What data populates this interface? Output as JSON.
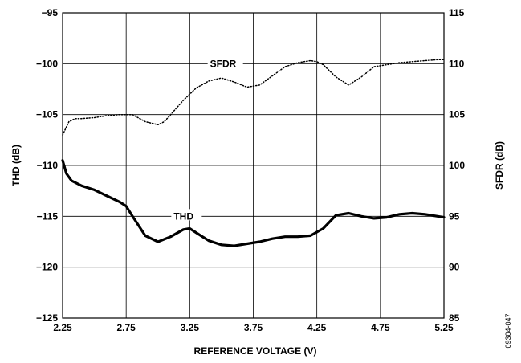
{
  "chart_data": {
    "type": "line",
    "xlabel": "REFERENCE VOLTAGE (V)",
    "ylabel_left": "THD (dB)",
    "ylabel_right": "SFDR (dB)",
    "x_ticks": [
      "2.25",
      "2.75",
      "3.25",
      "3.75",
      "4.25",
      "4.75",
      "5.25"
    ],
    "y_left_ticks": [
      "−95",
      "−100",
      "−105",
      "−110",
      "−115",
      "−120",
      "−125"
    ],
    "y_right_ticks": [
      "115",
      "110",
      "105",
      "100",
      "95",
      "90",
      "85"
    ],
    "xlim": [
      2.25,
      5.25
    ],
    "ylim_left": [
      -125,
      -95
    ],
    "ylim_right": [
      85,
      115
    ],
    "grid": true,
    "figure_id": "09304-047",
    "series": [
      {
        "name": "SFDR",
        "axis": "right",
        "style": "dotted",
        "x": [
          2.25,
          2.3,
          2.35,
          2.4,
          2.5,
          2.6,
          2.7,
          2.8,
          2.9,
          3.0,
          3.05,
          3.1,
          3.2,
          3.3,
          3.4,
          3.5,
          3.6,
          3.7,
          3.8,
          3.9,
          4.0,
          4.1,
          4.2,
          4.25,
          4.3,
          4.4,
          4.5,
          4.6,
          4.7,
          4.8,
          4.9,
          5.0,
          5.1,
          5.2,
          5.25
        ],
        "values": [
          103.0,
          104.3,
          104.6,
          104.6,
          104.7,
          104.9,
          105.0,
          105.0,
          104.3,
          104.0,
          104.3,
          105.0,
          106.4,
          107.6,
          108.3,
          108.6,
          108.2,
          107.7,
          107.9,
          108.8,
          109.7,
          110.1,
          110.3,
          110.2,
          109.9,
          108.7,
          107.9,
          108.7,
          109.7,
          109.9,
          110.1,
          110.2,
          110.3,
          110.4,
          110.4
        ]
      },
      {
        "name": "THD",
        "axis": "left",
        "style": "solid-thick",
        "x": [
          2.25,
          2.28,
          2.32,
          2.4,
          2.5,
          2.6,
          2.7,
          2.75,
          2.8,
          2.9,
          3.0,
          3.1,
          3.2,
          3.25,
          3.3,
          3.4,
          3.5,
          3.6,
          3.7,
          3.8,
          3.9,
          4.0,
          4.1,
          4.2,
          4.3,
          4.4,
          4.5,
          4.6,
          4.7,
          4.8,
          4.9,
          5.0,
          5.1,
          5.2,
          5.25
        ],
        "values": [
          -109.5,
          -110.8,
          -111.5,
          -112.0,
          -112.4,
          -113.0,
          -113.6,
          -114.0,
          -115.0,
          -116.9,
          -117.5,
          -117.0,
          -116.3,
          -116.2,
          -116.6,
          -117.4,
          -117.8,
          -117.9,
          -117.7,
          -117.5,
          -117.2,
          -117.0,
          -117.0,
          -116.9,
          -116.2,
          -114.9,
          -114.7,
          -115.0,
          -115.2,
          -115.1,
          -114.8,
          -114.7,
          -114.8,
          -115.0,
          -115.1
        ]
      }
    ]
  }
}
